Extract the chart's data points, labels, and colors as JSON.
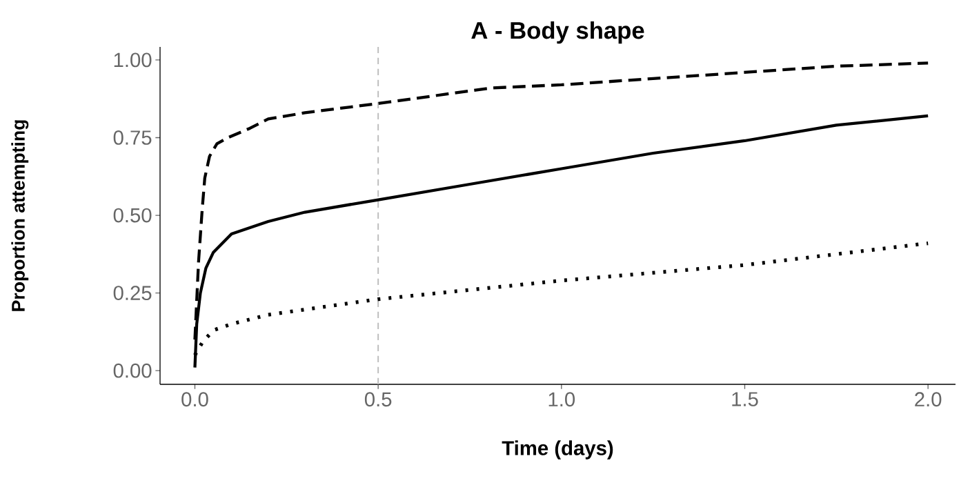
{
  "chart_data": {
    "type": "line",
    "title": "A - Body shape",
    "xlabel": "Time (days)",
    "ylabel": "Proportion attempting",
    "xlim": [
      -0.095,
      2.075
    ],
    "ylim": [
      -0.044,
      1.042
    ],
    "xticks": [
      {
        "value": 0,
        "label": "0.0"
      },
      {
        "value": 0.5,
        "label": "0.5"
      },
      {
        "value": 1,
        "label": "1.0"
      },
      {
        "value": 1.5,
        "label": "1.5"
      },
      {
        "value": 2,
        "label": "2.0"
      }
    ],
    "yticks": [
      {
        "value": 0,
        "label": "0.00"
      },
      {
        "value": 0.25,
        "label": "0.25"
      },
      {
        "value": 0.5,
        "label": "0.50"
      },
      {
        "value": 0.75,
        "label": "0.75"
      },
      {
        "value": 1,
        "label": "1.00"
      }
    ],
    "grid": false,
    "ref_lines": [
      {
        "axis": "x",
        "value": 0.5,
        "color": "#bebebe",
        "line_style": "dashed"
      }
    ],
    "series": [
      {
        "color": "#000000",
        "line_style": "dashed",
        "x": [
          0,
          0.01,
          0.02,
          0.027,
          0.04,
          0.06,
          0.09,
          0.15,
          0.2,
          0.3,
          0.5,
          0.81,
          1.0,
          1.25,
          1.5,
          1.75,
          2.0
        ],
        "values": [
          0.1,
          0.35,
          0.52,
          0.62,
          0.69,
          0.73,
          0.75,
          0.78,
          0.81,
          0.83,
          0.86,
          0.91,
          0.92,
          0.94,
          0.96,
          0.98,
          0.99
        ]
      },
      {
        "color": "#000000",
        "line_style": "solid",
        "x": [
          0,
          0.005,
          0.015,
          0.03,
          0.05,
          0.1,
          0.2,
          0.3,
          0.5,
          0.75,
          1.0,
          1.25,
          1.5,
          1.75,
          2.0
        ],
        "values": [
          0.01,
          0.15,
          0.25,
          0.33,
          0.38,
          0.44,
          0.48,
          0.51,
          0.55,
          0.6,
          0.65,
          0.7,
          0.74,
          0.79,
          0.82
        ]
      },
      {
        "color": "#000000",
        "line_style": "dotted",
        "x": [
          0,
          0.02,
          0.05,
          0.1,
          0.2,
          0.5,
          1.0,
          1.5,
          2.0
        ],
        "values": [
          0.05,
          0.09,
          0.13,
          0.15,
          0.18,
          0.23,
          0.29,
          0.34,
          0.41
        ]
      }
    ]
  }
}
